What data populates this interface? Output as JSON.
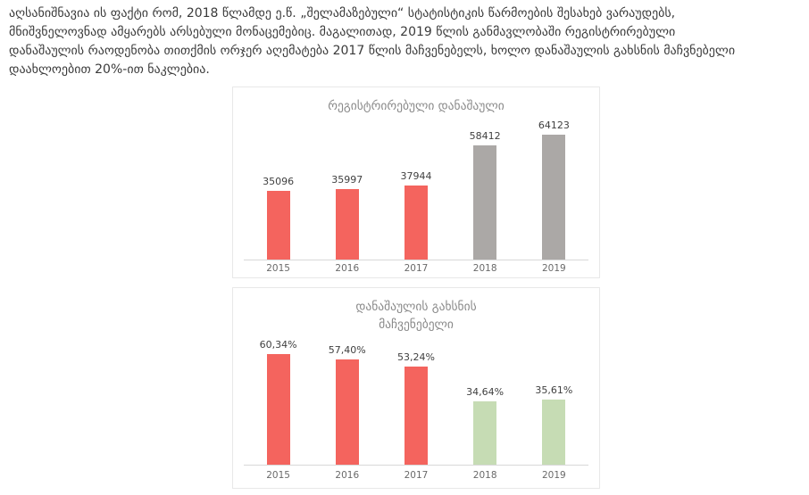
{
  "paragraph": {
    "lines": [
      "აღსანიშნავია ის ფაქტი რომ, 2018 წლამდე ე.წ. „შელამაზებული“ სტატისტიკის წარმოების შესახებ ვარაუდებს,",
      "მნიშვნელოვნად ამყარებს არსებული მონაცემებიც. მაგალითად, 2019 წლის განმავლობაში რეგისტრირებული",
      "დანაშაულის რაოდენობა თითქმის ორჯერ აღემატება 2017 წლის მაჩვენებელს, ხოლო დანაშაულის გახსნის მაჩვნებელი",
      "დაახლოებით 20%-ით ნაკლებია."
    ]
  },
  "chart_data": [
    {
      "type": "bar",
      "title": "რეგისტრირებული დანაშაული",
      "title_lines": [
        "რეგისტრირებული დანაშაული"
      ],
      "categories": [
        "2015",
        "2016",
        "2017",
        "2018",
        "2019"
      ],
      "values": [
        35096,
        35997,
        37944,
        58412,
        64123
      ],
      "data_labels": [
        "35096",
        "35997",
        "37944",
        "58412",
        "64123"
      ],
      "bar_colors": [
        "#f4645e",
        "#f4645e",
        "#f4645e",
        "#aba8a6",
        "#aba8a6"
      ],
      "xlabel": "",
      "ylabel": "",
      "ylim": [
        0,
        70000
      ],
      "grid": false,
      "legend": false
    },
    {
      "type": "bar",
      "title": "დანაშაულის გახსნის მაჩვენებელი",
      "title_lines": [
        "დანაშაულის გახსნის",
        "მაჩვენებელი"
      ],
      "categories": [
        "2015",
        "2016",
        "2017",
        "2018",
        "2019"
      ],
      "values": [
        60.34,
        57.4,
        53.24,
        34.64,
        35.61
      ],
      "data_labels": [
        "60,34%",
        "57,40%",
        "53,24%",
        "34,64%",
        "35,61%"
      ],
      "bar_colors": [
        "#f4645e",
        "#f4645e",
        "#f4645e",
        "#c6dcb4",
        "#c6dcb4"
      ],
      "xlabel": "",
      "ylabel": "",
      "ylim": [
        0,
        65
      ],
      "grid": false,
      "legend": false
    }
  ],
  "colors": {
    "text": "#3a3a3a",
    "chart_title": "#8a8a8a",
    "data_label": "#3f3f3f",
    "axis_label": "#6a6a6a",
    "red_bar": "#f4645e",
    "gray_bar": "#aba8a6",
    "green_bar": "#c6dcb4",
    "card_border": "#e8e8e8",
    "baseline": "#d8d8d8"
  }
}
